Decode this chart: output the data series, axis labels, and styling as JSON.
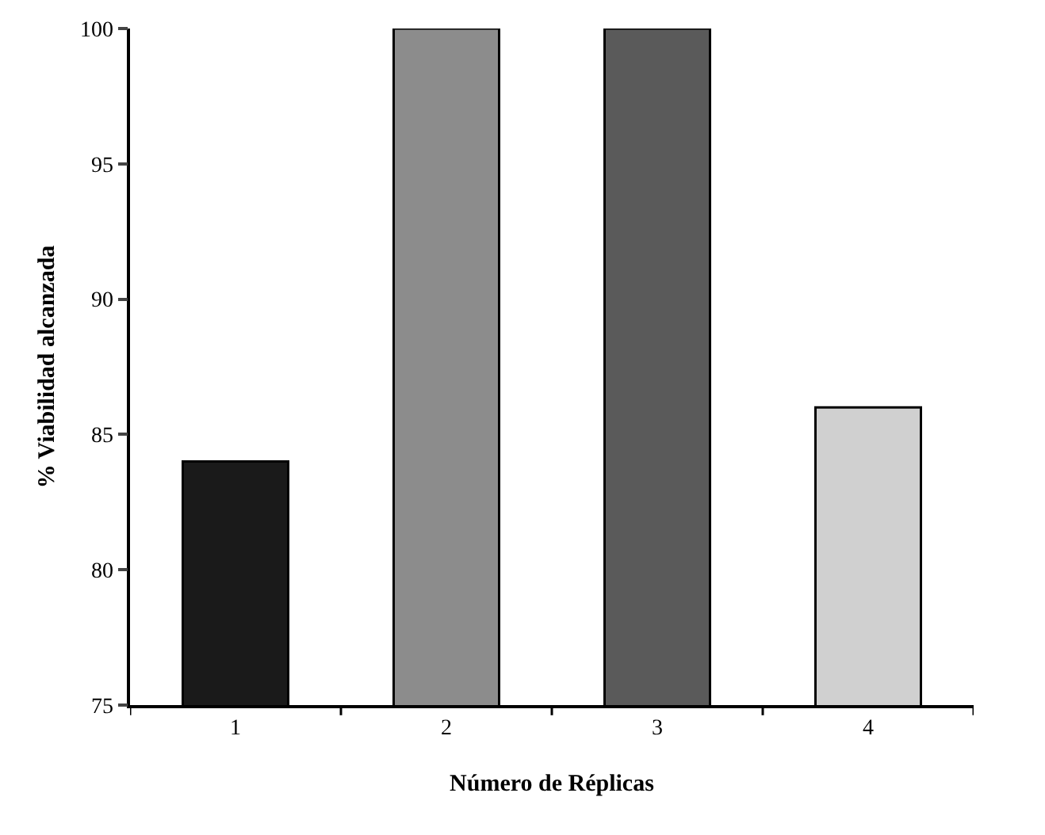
{
  "chart_data": {
    "type": "bar",
    "xlabel": "Número de Réplicas",
    "ylabel": "% Viabilidad alcanzada",
    "categories": [
      "1",
      "2",
      "3",
      "4"
    ],
    "values": [
      84,
      100,
      100,
      86
    ],
    "colors": [
      "#1a1a1a",
      "#8c8c8c",
      "#5a5a5a",
      "#d0d0d0"
    ],
    "ylim": [
      75,
      100
    ],
    "yticks": [
      75,
      80,
      85,
      90,
      95,
      100
    ]
  }
}
